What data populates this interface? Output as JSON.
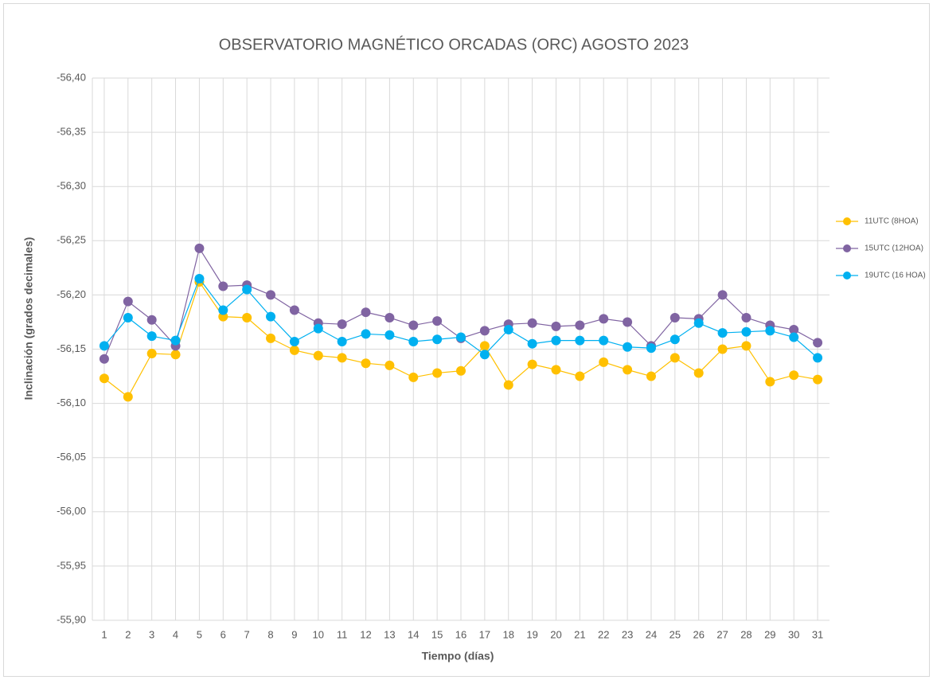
{
  "chart_data": {
    "type": "line",
    "title": "OBSERVATORIO MAGNÉTICO ORCADAS (ORC) AGOSTO 2023",
    "x_label": "Tiempo (días)",
    "y_label": "Inclinación (grados decimales)",
    "categories": [
      "1",
      "2",
      "3",
      "4",
      "5",
      "6",
      "7",
      "8",
      "9",
      "10",
      "11",
      "12",
      "13",
      "14",
      "15",
      "16",
      "17",
      "18",
      "19",
      "20",
      "21",
      "22",
      "23",
      "24",
      "25",
      "26",
      "27",
      "28",
      "29",
      "30",
      "31"
    ],
    "ylim": [
      -55.9,
      -56.4
    ],
    "yticks": [
      {
        "value": -56.4,
        "label": "-56,40"
      },
      {
        "value": -56.35,
        "label": "-56,35"
      },
      {
        "value": -56.3,
        "label": "-56,30"
      },
      {
        "value": -56.25,
        "label": "-56,25"
      },
      {
        "value": -56.2,
        "label": "-56,20"
      },
      {
        "value": -56.15,
        "label": "-56,15"
      },
      {
        "value": -56.1,
        "label": "-56,10"
      },
      {
        "value": -56.05,
        "label": "-56,05"
      },
      {
        "value": -56.0,
        "label": "-56,00"
      },
      {
        "value": -55.95,
        "label": "-55,95"
      },
      {
        "value": -55.9,
        "label": "-55,90"
      }
    ],
    "grid": true,
    "legend": "right",
    "series": [
      {
        "name": "11UTC (8HOA)",
        "color": "#FFC000",
        "values": [
          -56.123,
          -56.106,
          -56.146,
          -56.145,
          -56.212,
          -56.18,
          -56.179,
          -56.16,
          -56.149,
          -56.144,
          -56.142,
          -56.137,
          -56.135,
          -56.124,
          -56.128,
          -56.13,
          -56.153,
          -56.117,
          -56.136,
          -56.131,
          -56.125,
          -56.138,
          -56.131,
          -56.125,
          -56.142,
          -56.128,
          -56.15,
          -56.153,
          -56.12,
          -56.126,
          -56.122
        ]
      },
      {
        "name": "15UTC (12HOA)",
        "color": "#8064A2",
        "values": [
          -56.141,
          -56.194,
          -56.177,
          -56.153,
          -56.243,
          -56.208,
          -56.209,
          -56.2,
          -56.186,
          -56.174,
          -56.173,
          -56.184,
          -56.179,
          -56.172,
          -56.176,
          -56.16,
          -56.167,
          -56.173,
          -56.174,
          -56.171,
          -56.172,
          -56.178,
          -56.175,
          -56.153,
          -56.179,
          -56.178,
          -56.2,
          -56.179,
          -56.172,
          -56.168,
          -56.156
        ]
      },
      {
        "name": "19UTC (16 HOA)",
        "color": "#00B0F0",
        "values": [
          -56.153,
          -56.179,
          -56.162,
          -56.158,
          -56.215,
          -56.186,
          -56.205,
          -56.18,
          -56.157,
          -56.169,
          -56.157,
          -56.164,
          -56.163,
          -56.157,
          -56.159,
          -56.161,
          -56.145,
          -56.168,
          -56.155,
          -56.158,
          -56.158,
          -56.158,
          -56.152,
          -56.151,
          -56.159,
          -56.174,
          -56.165,
          -56.166,
          -56.167,
          -56.161,
          -56.142
        ]
      }
    ]
  }
}
